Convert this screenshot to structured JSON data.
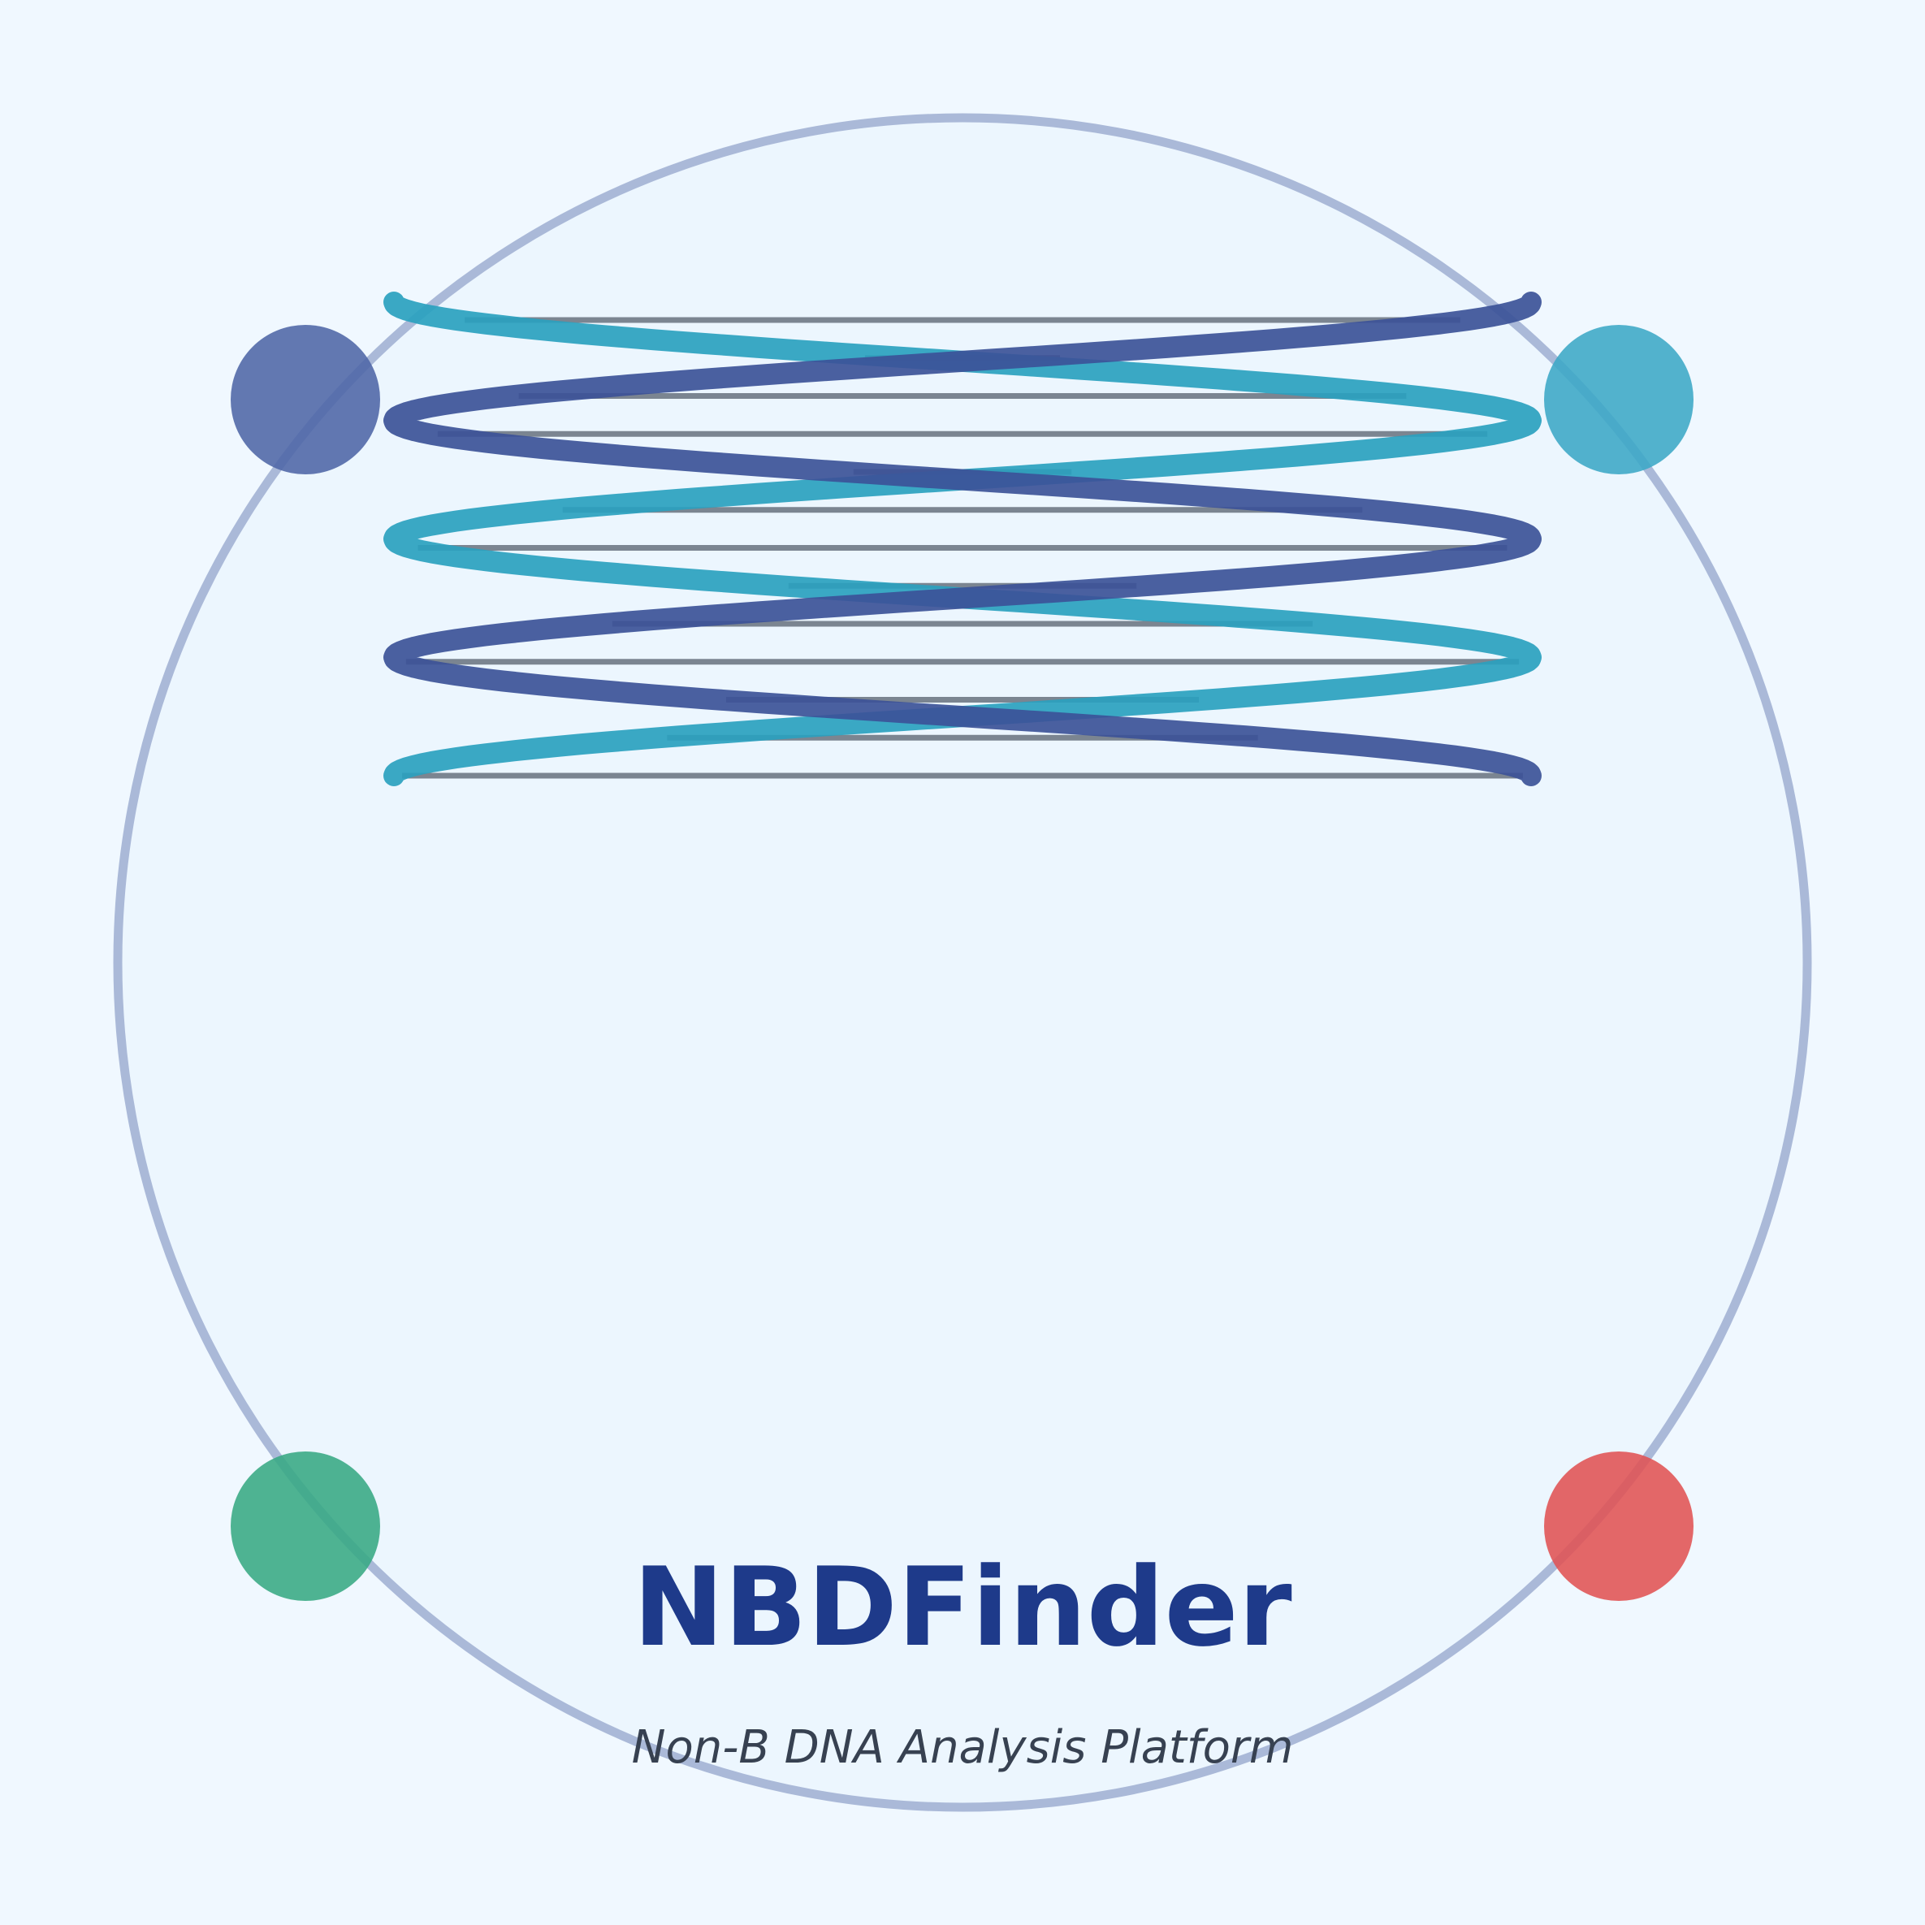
{
  "logo": {
    "title": "NBDFinder",
    "subtitle": "Non-B DNA Analysis Platform"
  },
  "colors": {
    "background": "#f0f8ff",
    "ring": "#aab9d8",
    "title": "#1e3a8a",
    "subtitle": "#374151",
    "strand_dark": "#3c5398",
    "strand_teal": "#2aa1bf",
    "base_pair": "#4b5563",
    "dot_top_left": "#4d65a6",
    "dot_top_right": "#3ba7c6",
    "dot_bottom_left": "#37a983",
    "dot_bottom_right": "#e05253"
  },
  "icons": {
    "helix": "dna-double-helix-icon",
    "ring": "circle-ring",
    "dots": [
      "blue-dot",
      "teal-dot",
      "green-dot",
      "red-dot"
    ]
  }
}
